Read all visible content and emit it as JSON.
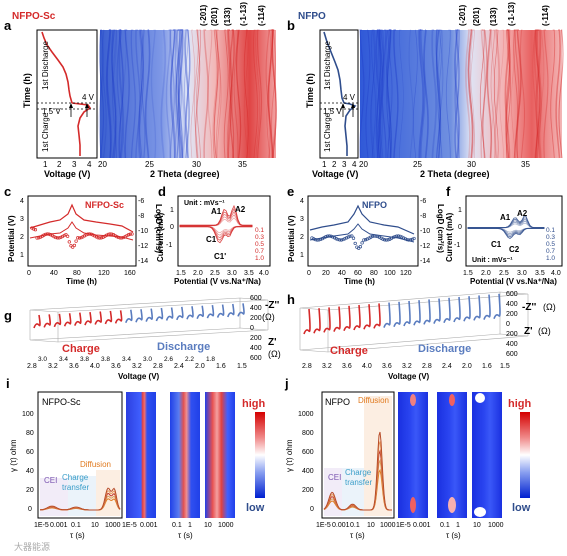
{
  "colors": {
    "red": "#d42a2a",
    "blue": "#2f4d8c",
    "lightblue": "#6b8cc7",
    "orange": "#e07a1f",
    "purple": "#7a55b0",
    "cyan": "#3a9ec9"
  },
  "panels": {
    "a": "a",
    "b": "b",
    "c": "c",
    "d": "d",
    "e": "e",
    "f": "f",
    "g": "g",
    "h": "h",
    "i": "i",
    "j": "j"
  },
  "samples": {
    "sc": "NFPO-Sc",
    "plain": "NFPO"
  },
  "ab": {
    "time_label": "Time (h)",
    "voltage_label": "Voltage (V)",
    "two_theta_label": "2 Theta (degree)",
    "v_ticks": [
      "1",
      "2",
      "3",
      "4"
    ],
    "theta_ticks": [
      "20",
      "25",
      "30",
      "35"
    ],
    "first_discharge": "1st Discharge",
    "first_charge": "1st Charge",
    "v_low": "1.5 V",
    "v_high": "4 V",
    "hkl": [
      "(-201)",
      "(201)",
      "(133)",
      "(-1-13)",
      "(-114)"
    ]
  },
  "c_plot": {
    "ylabel": "Potential (V)",
    "ylabel2": "LogD (cm²/s)",
    "xlabel": "Time (h)",
    "xticks": [
      "0",
      "40",
      "80",
      "120",
      "160"
    ],
    "yticks": [
      "1",
      "2",
      "3",
      "4"
    ],
    "y2ticks": [
      "-6",
      "-8",
      "-10",
      "-12",
      "-14"
    ]
  },
  "e_plot": {
    "ylabel": "Potential (V)",
    "ylabel2": "LogD (cm²/s)",
    "xlabel": "Time (h)",
    "xticks": [
      "0",
      "20",
      "40",
      "60",
      "80",
      "100",
      "120"
    ],
    "yticks": [
      "1",
      "2",
      "3",
      "4"
    ],
    "y2ticks": [
      "-6",
      "-8",
      "-10",
      "-12",
      "-14"
    ]
  },
  "d_plot": {
    "unit": "Unit : mVs⁻¹",
    "ylabel": "Current (mA)",
    "xlabel": "Potential (V vs.Na⁺/Na)",
    "xticks": [
      "1.5",
      "2.0",
      "2.5",
      "3.0",
      "3.5",
      "4.0"
    ],
    "yticks": [
      "1",
      "0",
      "-1"
    ],
    "peaks": [
      "A1",
      "A2",
      "C1",
      "C1'"
    ],
    "rates": [
      "0.1",
      "0.3",
      "0.5",
      "0.7",
      "1.0"
    ]
  },
  "f_plot": {
    "unit": "Unit : mVs⁻¹",
    "ylabel": "Current (mA)",
    "xlabel": "Potential (V vs.Na⁺/Na)",
    "xticks": [
      "1.5",
      "2.0",
      "2.5",
      "3.0",
      "3.5",
      "4.0"
    ],
    "yticks": [
      "1",
      "0",
      "-1"
    ],
    "peaks": [
      "A1",
      "A2",
      "C1",
      "C2"
    ],
    "rates": [
      "0.1",
      "0.3",
      "0.5",
      "0.7",
      "1.0"
    ]
  },
  "gh": {
    "zpp": "-Z''",
    "zp": "Z'",
    "ohm": "(Ω)",
    "zticks": [
      "600",
      "400",
      "200",
      "0",
      "200",
      "400",
      "600"
    ],
    "charge": "Charge",
    "discharge": "Discharge",
    "xlabel": "Voltage (V)",
    "vticks": [
      "2.8",
      "3.2",
      "3.6",
      "4.0",
      "3.6",
      "3.2",
      "2.8",
      "2.4",
      "2.0",
      "1.6",
      "1.5"
    ],
    "vticks_g": [
      "2.8",
      "3.2",
      "3.6",
      "4.0",
      "3.6",
      "3.2",
      "2.8",
      "2.4",
      "2.0",
      "1.6",
      "1.5"
    ],
    "vticks_g_more": [
      "3.0",
      "3.4",
      "3.8",
      "3.8",
      "3.4",
      "3.0",
      "2.6",
      "2.2",
      "1.8"
    ]
  },
  "ij": {
    "ylabel": "γ (τ) ohm",
    "xlabel": "τ (s)",
    "i_yticks": [
      "0",
      "20",
      "40",
      "60",
      "80",
      "100"
    ],
    "j_yticks": [
      "0",
      "200",
      "400",
      "600",
      "800",
      "1000"
    ],
    "xticks_main": [
      "1E-5",
      "0.001",
      "0.1",
      "10",
      "1000"
    ],
    "heat_x1": [
      "1E-5",
      "0.001"
    ],
    "heat_x2": [
      "0.1",
      "1"
    ],
    "heat_x3": [
      "10",
      "1000"
    ],
    "cei": "CEI",
    "charge_transfer": [
      "Charge",
      "transfer"
    ],
    "diffusion": "Diffusion",
    "high": "high",
    "low": "low"
  },
  "watermark": "大器能源"
}
